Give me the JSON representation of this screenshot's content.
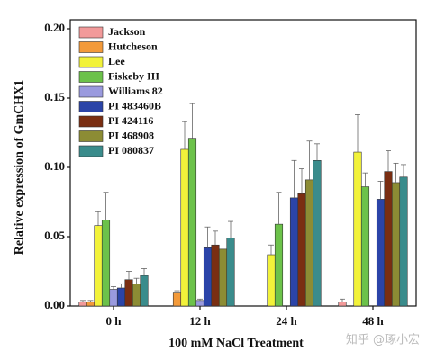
{
  "chart_data": {
    "type": "bar",
    "ylabel": "Relative expression of GmCHX1",
    "xlabel": "100 mM NaCl Treatment",
    "watermark": "知乎 @琢小宏",
    "categories": [
      "0 h",
      "12 h",
      "24 h",
      "48 h"
    ],
    "ylim": [
      0,
      0.2
    ],
    "yticks": [
      {
        "value": 0,
        "label": "0.00"
      },
      {
        "value": 0.05,
        "label": "0.05"
      },
      {
        "value": 0.1,
        "label": "0.10"
      },
      {
        "value": 0.15,
        "label": "0.15"
      },
      {
        "value": 0.2,
        "label": "0.20"
      }
    ],
    "legend": "upper-left",
    "series": [
      {
        "name": "Jackson",
        "color": "#f29a9a",
        "values": [
          0.003,
          0,
          0,
          0.003
        ],
        "errors": [
          0.001,
          0,
          0,
          0.002
        ]
      },
      {
        "name": "Hutcheson",
        "color": "#f39a3a",
        "values": [
          0.003,
          0.01,
          0,
          0
        ],
        "errors": [
          0.001,
          0.001,
          0,
          0
        ]
      },
      {
        "name": "Lee",
        "color": "#f2f23a",
        "values": [
          0.058,
          0.113,
          0.037,
          0.111
        ],
        "errors": [
          0.01,
          0.02,
          0.007,
          0.027
        ]
      },
      {
        "name": "Fiskeby III",
        "color": "#6cc24a",
        "values": [
          0.062,
          0.121,
          0.059,
          0.086
        ],
        "errors": [
          0.02,
          0.025,
          0.023,
          0.01
        ]
      },
      {
        "name": "Williams 82",
        "color": "#9a9ade",
        "values": [
          0.012,
          0.004,
          0,
          0
        ],
        "errors": [
          0.002,
          0.001,
          0,
          0
        ]
      },
      {
        "name": "PI 483460B",
        "color": "#2b44a8",
        "values": [
          0.013,
          0.042,
          0.078,
          0.077
        ],
        "errors": [
          0.003,
          0.015,
          0.027,
          0.013
        ]
      },
      {
        "name": "PI 424116",
        "color": "#7a2e12",
        "values": [
          0.019,
          0.044,
          0.081,
          0.097
        ],
        "errors": [
          0.006,
          0.01,
          0.018,
          0.015
        ]
      },
      {
        "name": "PI 468908",
        "color": "#8c8c34",
        "values": [
          0.016,
          0.041,
          0.091,
          0.089
        ],
        "errors": [
          0.004,
          0.008,
          0.028,
          0.014
        ]
      },
      {
        "name": "PI 080837",
        "color": "#3a8c8c",
        "values": [
          0.022,
          0.049,
          0.105,
          0.093
        ],
        "errors": [
          0.005,
          0.012,
          0.012,
          0.009
        ]
      }
    ]
  }
}
